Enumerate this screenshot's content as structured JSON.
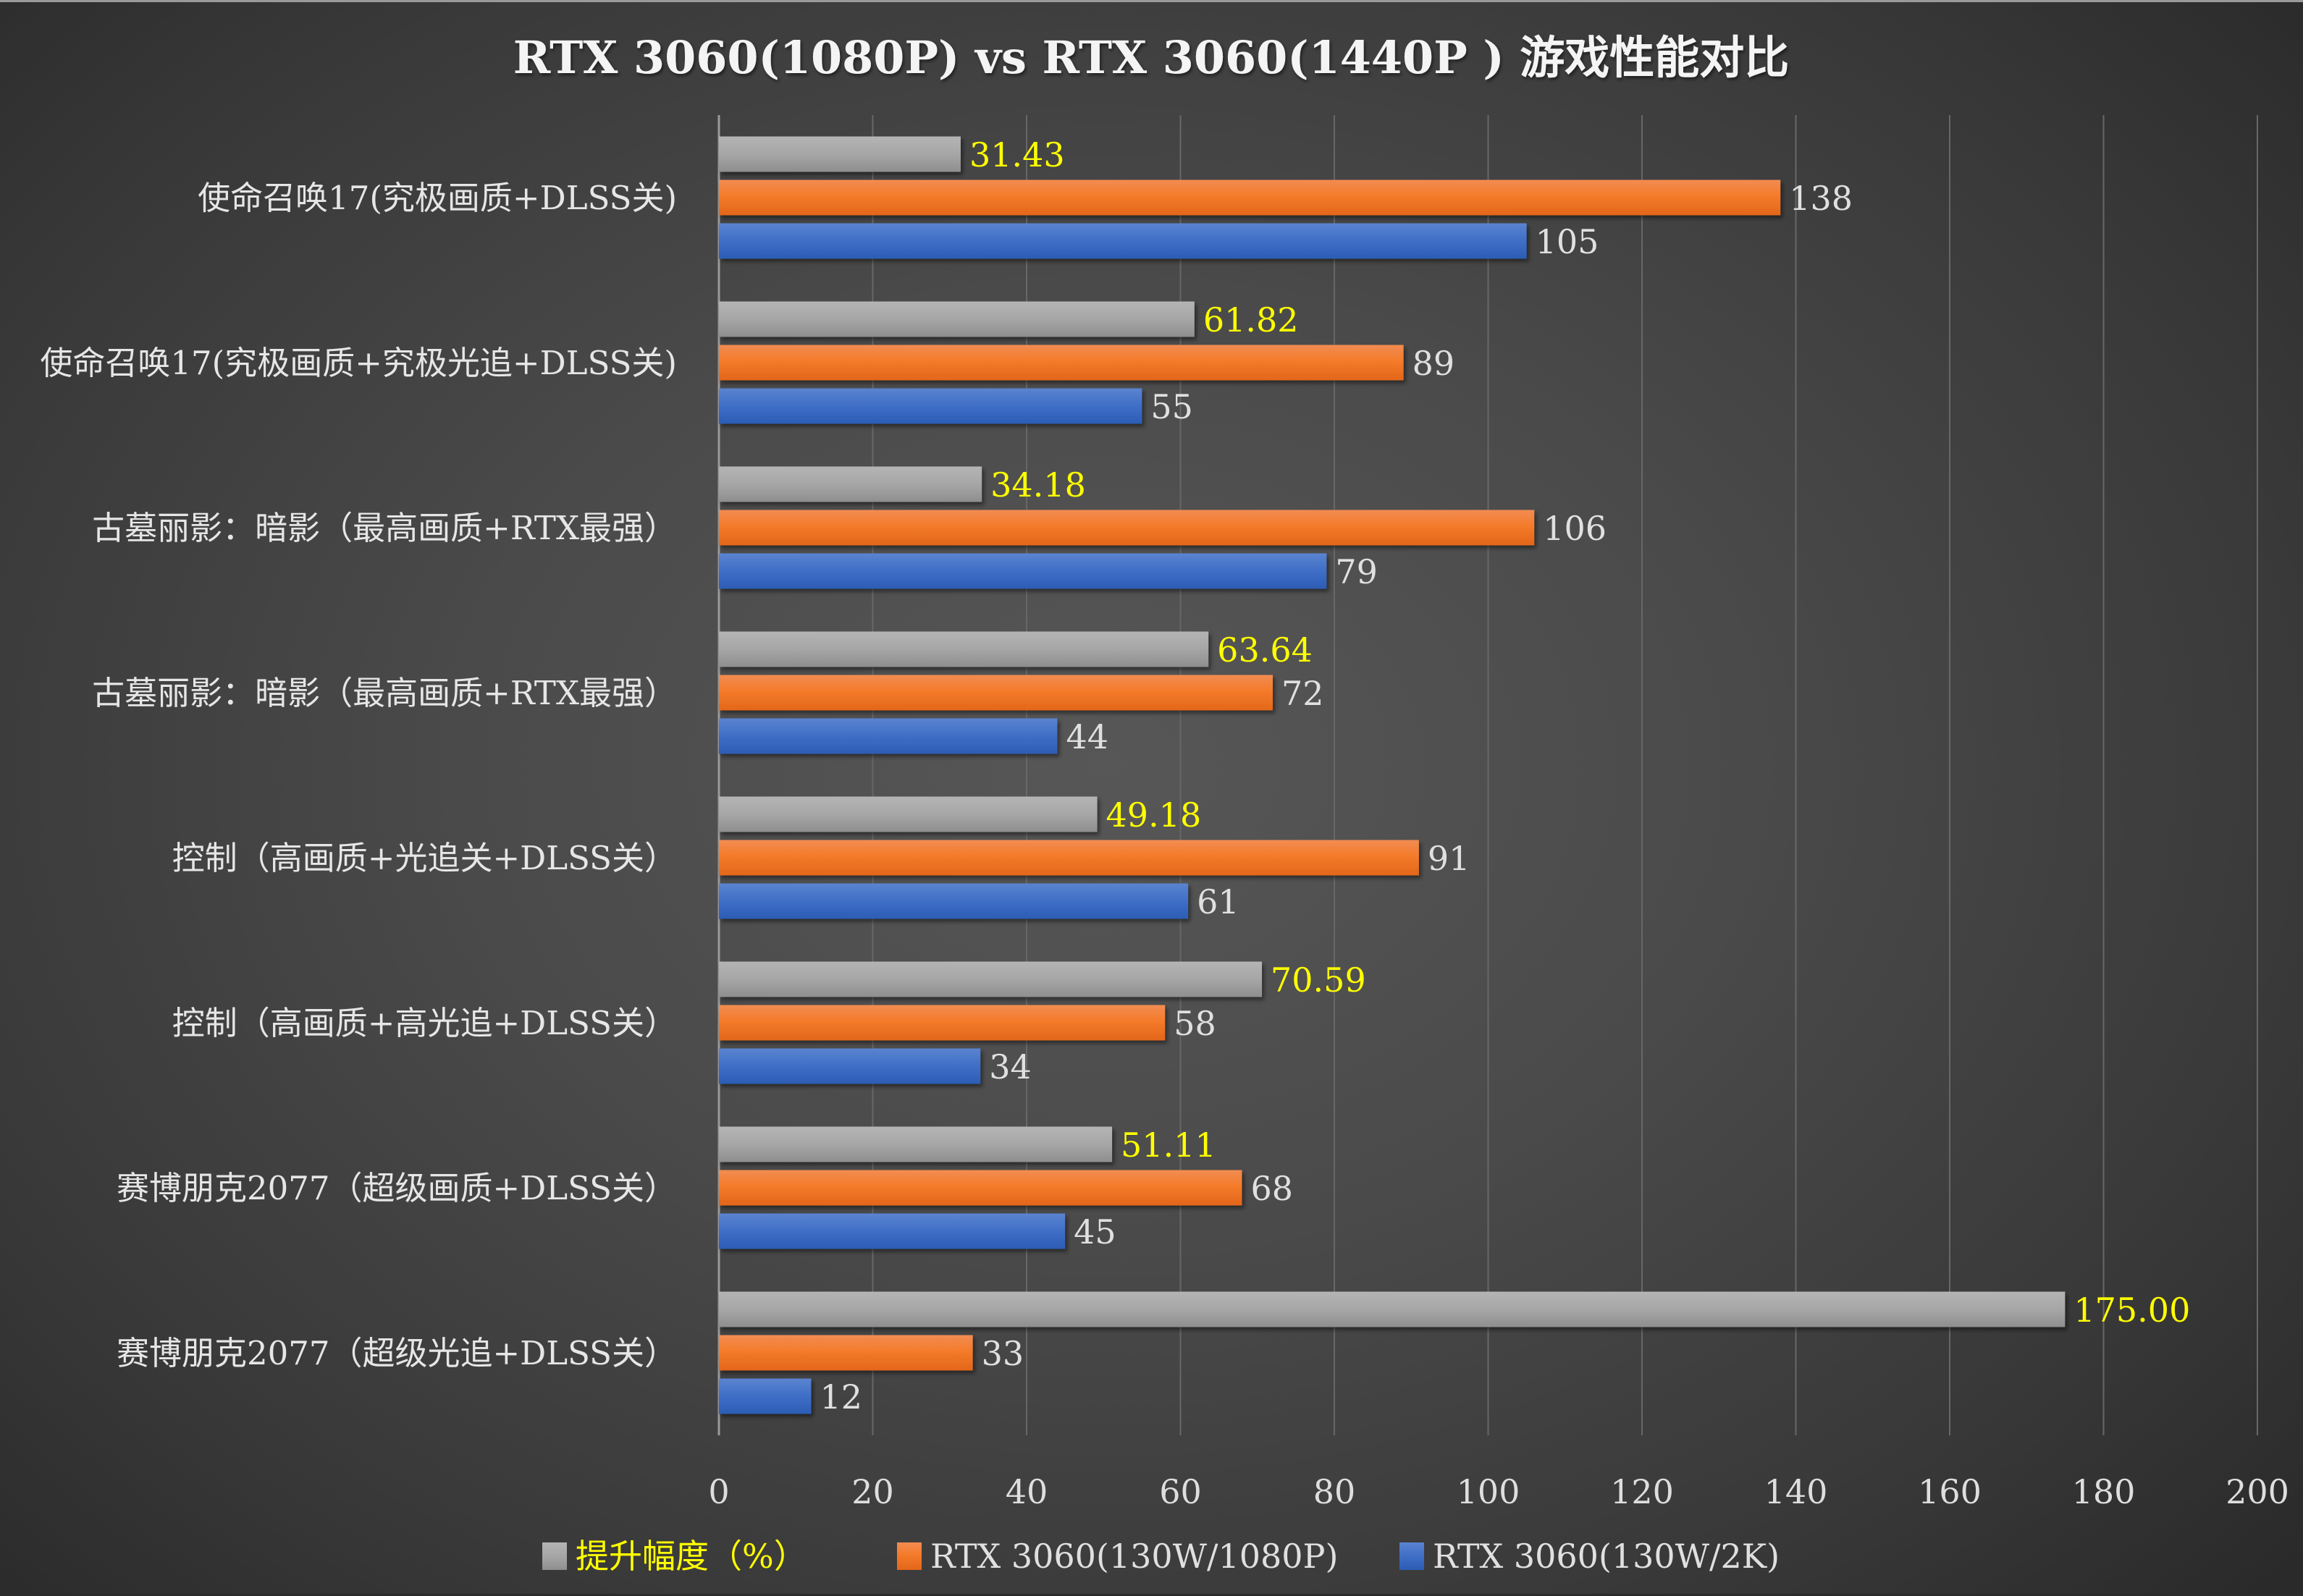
{
  "chart_data": {
    "type": "bar",
    "orientation": "horizontal",
    "title": "RTX 3060(1080P) vs RTX 3060(1440P ) 游戏性能对比",
    "xlabel": "",
    "ylabel": "",
    "xlim": [
      0,
      200
    ],
    "x_ticks": [
      0,
      20,
      40,
      60,
      80,
      100,
      120,
      140,
      160,
      180,
      200
    ],
    "grid": true,
    "legend_position": "bottom",
    "categories": [
      "使命召唤17(究极画质+DLSS关)",
      "使命召唤17(究极画质+究极光追+DLSS关)",
      "古墓丽影：暗影（最高画质+RTX最强）",
      "古墓丽影：暗影（最高画质+RTX最强）",
      "控制（高画质+光追关+DLSS关）",
      "控制（高画质+高光追+DLSS关）",
      "赛博朋克2077（超级画质+DLSS关）",
      "赛博朋克2077（超级光追+DLSS关）"
    ],
    "series": [
      {
        "name": "提升幅度（%）",
        "color": "#a6a6a6",
        "label_color": "#ffff00",
        "label_decimals": 2,
        "values": [
          31.43,
          61.82,
          34.18,
          63.64,
          49.18,
          70.59,
          51.11,
          175.0
        ]
      },
      {
        "name": "RTX 3060(130W/1080P)",
        "color": "#f07b2a",
        "label_color": "#e0e0e0",
        "label_decimals": 0,
        "values": [
          138,
          89,
          106,
          72,
          91,
          58,
          68,
          33
        ]
      },
      {
        "name": "RTX 3060(130W/2K)",
        "color": "#4472c4",
        "label_color": "#e0e0e0",
        "label_decimals": 0,
        "values": [
          105,
          55,
          79,
          44,
          61,
          34,
          45,
          12
        ]
      }
    ]
  }
}
